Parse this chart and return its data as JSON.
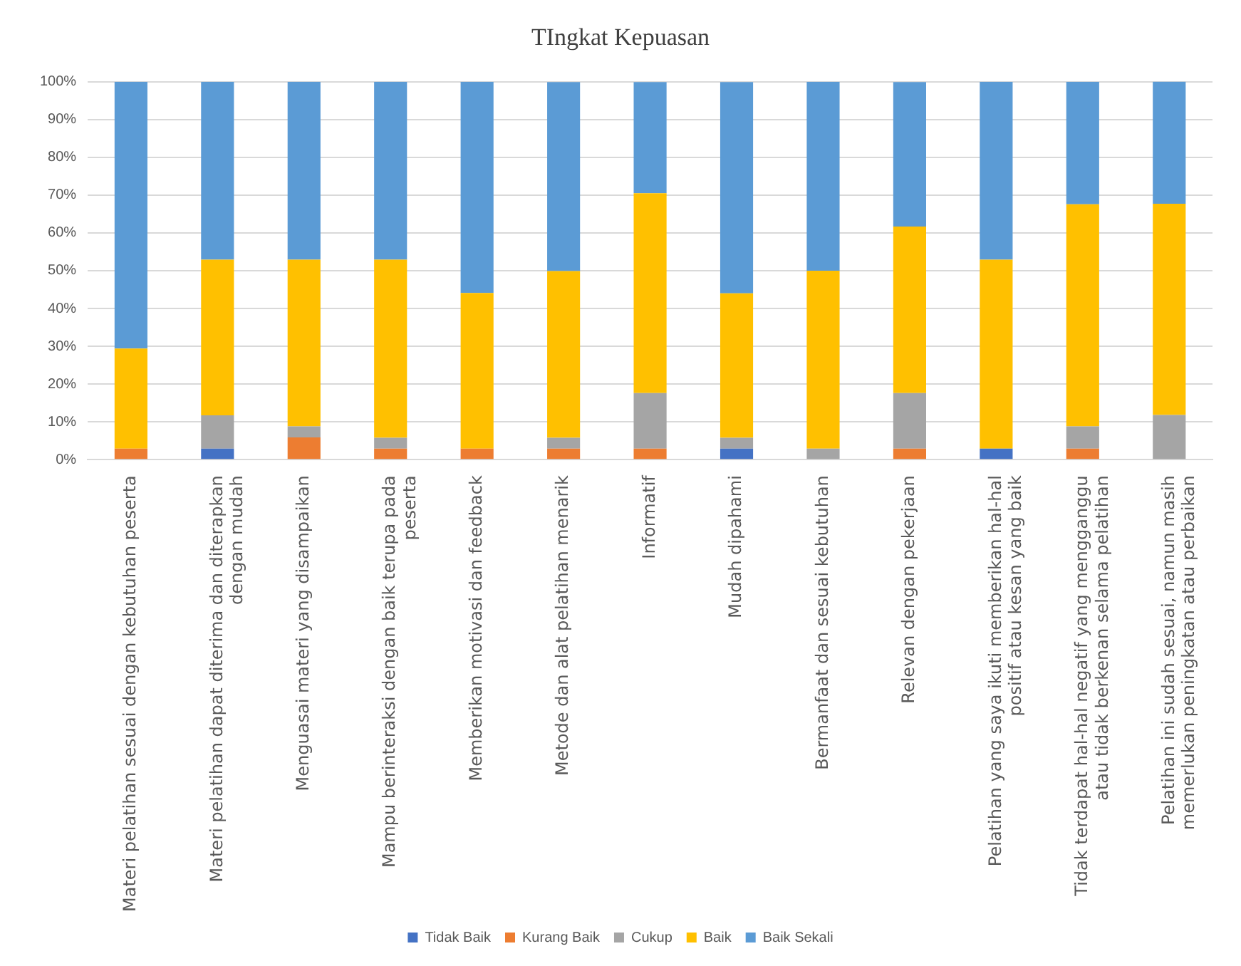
{
  "chart_data": {
    "type": "bar",
    "title": "TIngkat Kepuasan",
    "stacked": true,
    "legend": "bottom",
    "grid": "y",
    "categories": [
      "Materi pelatihan sesuai dengan kebutuhan peserta",
      "Materi pelatihan dapat diterima dan diterapkan dengan mudah",
      "Menguasai materi yang disampaikan",
      "Mampu berinteraksi dengan baik terupa pada peserta",
      "Memberikan motivasi dan feedback",
      "Metode dan alat pelatihan menarik",
      "Informatif",
      "Mudah dipahami",
      "Bermanfaat dan sesuai kebutuhan",
      "Relevan dengan pekerjaan",
      "Pelatihan yang saya ikuti memberikan hal-hal positif atau kesan yang baik",
      "Tidak terdapat hal-hal negatif yang mengganggu atau tidak berkenan selama pelatihan",
      "Pelatihan ini sudah sesuai, namun masih memerlukan peningkatan atau perbaikan"
    ],
    "series": [
      {
        "name": "Tidak Baik",
        "color": "#4472c4",
        "values": [
          0,
          2.9,
          0,
          0,
          0,
          0,
          0,
          2.9,
          0,
          0,
          2.9,
          0,
          0
        ]
      },
      {
        "name": "Kurang Baik",
        "color": "#ed7d31",
        "values": [
          2.9,
          0,
          5.9,
          2.9,
          2.9,
          2.9,
          2.9,
          0,
          0,
          2.9,
          0,
          2.9,
          0
        ]
      },
      {
        "name": "Cukup",
        "color": "#a5a5a5",
        "values": [
          0,
          8.8,
          2.9,
          2.9,
          0,
          2.9,
          14.7,
          2.9,
          2.9,
          14.7,
          0,
          5.9,
          11.8
        ]
      },
      {
        "name": "Baik",
        "color": "#ffc000",
        "values": [
          26.5,
          41.2,
          44.1,
          47.1,
          41.2,
          44.1,
          52.9,
          38.2,
          47.1,
          44.1,
          50,
          58.8,
          55.9
        ]
      },
      {
        "name": "Baik Sekali",
        "color": "#5b9bd5",
        "values": [
          70.6,
          47.1,
          47.1,
          47.1,
          55.9,
          50,
          29.4,
          55.9,
          50,
          38.2,
          47.1,
          32.4,
          32.4
        ]
      }
    ],
    "ylim": [
      0,
      100
    ],
    "yticks": [
      {
        "value": 0,
        "label": "0%"
      },
      {
        "value": 10,
        "label": "10%"
      },
      {
        "value": 20,
        "label": "20%"
      },
      {
        "value": 30,
        "label": "30%"
      },
      {
        "value": 40,
        "label": "40%"
      },
      {
        "value": 50,
        "label": "50%"
      },
      {
        "value": 60,
        "label": "60%"
      },
      {
        "value": 70,
        "label": "70%"
      },
      {
        "value": 80,
        "label": "80%"
      },
      {
        "value": 90,
        "label": "90%"
      },
      {
        "value": 100,
        "label": "100%"
      }
    ]
  }
}
